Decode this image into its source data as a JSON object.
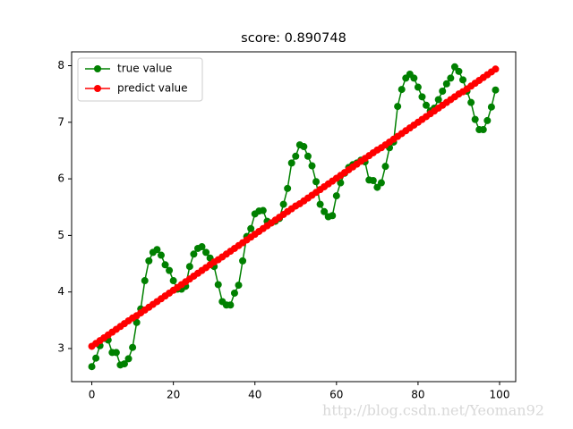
{
  "chart_data": {
    "type": "line",
    "title": "score: 0.890748",
    "x": [
      0,
      1,
      2,
      3,
      4,
      5,
      6,
      7,
      8,
      9,
      10,
      11,
      12,
      13,
      14,
      15,
      16,
      17,
      18,
      19,
      20,
      21,
      22,
      23,
      24,
      25,
      26,
      27,
      28,
      29,
      30,
      31,
      32,
      33,
      34,
      35,
      36,
      37,
      38,
      39,
      40,
      41,
      42,
      43,
      44,
      45,
      46,
      47,
      48,
      49,
      50,
      51,
      52,
      53,
      54,
      55,
      56,
      57,
      58,
      59,
      60,
      61,
      62,
      63,
      64,
      65,
      66,
      67,
      68,
      69,
      70,
      71,
      72,
      73,
      74,
      75,
      76,
      77,
      78,
      79,
      80,
      81,
      82,
      83,
      84,
      85,
      86,
      87,
      88,
      89,
      90,
      91,
      92,
      93,
      94,
      95,
      96,
      97,
      98,
      99
    ],
    "series": [
      {
        "name": "true value",
        "color": "#008000",
        "values": [
          2.68,
          2.83,
          3.05,
          3.18,
          3.15,
          2.93,
          2.93,
          2.71,
          2.73,
          2.82,
          3.02,
          3.46,
          3.7,
          4.2,
          4.55,
          4.7,
          4.75,
          4.65,
          4.48,
          4.38,
          4.2,
          4.05,
          4.05,
          4.1,
          4.45,
          4.67,
          4.77,
          4.8,
          4.7,
          4.6,
          4.45,
          4.13,
          3.83,
          3.77,
          3.77,
          3.98,
          4.12,
          4.55,
          4.98,
          5.12,
          5.38,
          5.43,
          5.44,
          5.25,
          5.22,
          5.25,
          5.3,
          5.55,
          5.83,
          6.28,
          6.4,
          6.6,
          6.57,
          6.4,
          6.23,
          5.95,
          5.55,
          5.42,
          5.33,
          5.35,
          5.7,
          5.93,
          6.1,
          6.2,
          6.25,
          6.28,
          6.33,
          6.3,
          5.98,
          5.97,
          5.85,
          5.93,
          6.22,
          6.55,
          6.65,
          7.28,
          7.58,
          7.78,
          7.85,
          7.78,
          7.62,
          7.45,
          7.3,
          7.2,
          7.25,
          7.4,
          7.55,
          7.68,
          7.78,
          7.98,
          7.9,
          7.75,
          7.55,
          7.35,
          7.05,
          6.87,
          6.87,
          7.03,
          7.27,
          7.57
        ]
      },
      {
        "name": "predict value",
        "color": "#ff0000",
        "values": [
          3.04,
          3.09,
          3.14,
          3.19,
          3.24,
          3.29,
          3.34,
          3.39,
          3.44,
          3.49,
          3.54,
          3.58,
          3.63,
          3.68,
          3.73,
          3.78,
          3.83,
          3.88,
          3.93,
          3.98,
          4.03,
          4.08,
          4.13,
          4.18,
          4.23,
          4.28,
          4.33,
          4.38,
          4.43,
          4.48,
          4.53,
          4.57,
          4.62,
          4.67,
          4.72,
          4.77,
          4.82,
          4.87,
          4.92,
          4.97,
          5.02,
          5.07,
          5.12,
          5.17,
          5.22,
          5.27,
          5.32,
          5.37,
          5.42,
          5.47,
          5.52,
          5.56,
          5.61,
          5.66,
          5.71,
          5.76,
          5.81,
          5.86,
          5.91,
          5.96,
          6.01,
          6.06,
          6.11,
          6.16,
          6.21,
          6.26,
          6.31,
          6.36,
          6.41,
          6.46,
          6.51,
          6.55,
          6.6,
          6.65,
          6.7,
          6.75,
          6.8,
          6.85,
          6.9,
          6.95,
          7.0,
          7.05,
          7.1,
          7.15,
          7.2,
          7.25,
          7.3,
          7.35,
          7.4,
          7.45,
          7.5,
          7.54,
          7.59,
          7.64,
          7.69,
          7.74,
          7.79,
          7.84,
          7.89,
          7.94
        ]
      }
    ],
    "xlim": [
      -4.95,
      103.95
    ],
    "ylim": [
      2.415,
      8.245
    ],
    "xticks": [
      0,
      20,
      40,
      60,
      80,
      100
    ],
    "yticks": [
      3,
      4,
      5,
      6,
      7,
      8
    ],
    "legend": "upper left",
    "watermark": "http://blog.csdn.net/Yeoman92"
  }
}
